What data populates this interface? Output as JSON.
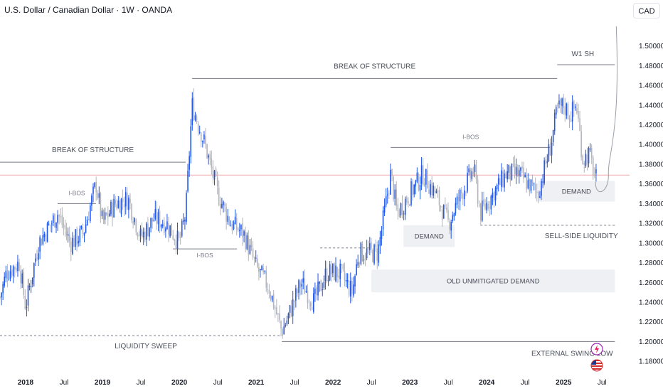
{
  "header": {
    "title": "U.S. Dollar / Canadian Dollar · 1W · OANDA",
    "currency": "CAD"
  },
  "colors": {
    "up": "#2156e6",
    "down": "#b2b5be",
    "structure_line": "#787b86",
    "zone_fill": "#eef0f4",
    "current_price_line": "#f2a6a6"
  },
  "chart_data": {
    "type": "candlestick",
    "symbol": "USDCAD",
    "interval": "1W",
    "x_range": [
      "2017-09",
      "2025-09"
    ],
    "y_range": [
      1.17,
      1.525
    ],
    "y_ticks": [
      "1.18000",
      "1.20000",
      "1.22000",
      "1.24000",
      "1.26000",
      "1.28000",
      "1.30000",
      "1.32000",
      "1.34000",
      "1.36000",
      "1.38000",
      "1.40000",
      "1.42000",
      "1.44000",
      "1.46000",
      "1.48000",
      "1.50000"
    ],
    "x_ticks": [
      {
        "date": "2018-01",
        "label": "2018",
        "year": true
      },
      {
        "date": "2018-07",
        "label": "Jul",
        "year": false
      },
      {
        "date": "2019-01",
        "label": "2019",
        "year": true
      },
      {
        "date": "2019-07",
        "label": "Jul",
        "year": false
      },
      {
        "date": "2020-01",
        "label": "2020",
        "year": true
      },
      {
        "date": "2020-07",
        "label": "Jul",
        "year": false
      },
      {
        "date": "2021-01",
        "label": "2021",
        "year": true
      },
      {
        "date": "2021-07",
        "label": "Jul",
        "year": false
      },
      {
        "date": "2022-01",
        "label": "2022",
        "year": true
      },
      {
        "date": "2022-07",
        "label": "Jul",
        "year": false
      },
      {
        "date": "2023-01",
        "label": "2023",
        "year": true
      },
      {
        "date": "2023-07",
        "label": "Jul",
        "year": false
      },
      {
        "date": "2024-01",
        "label": "2024",
        "year": true
      },
      {
        "date": "2024-07",
        "label": "Jul",
        "year": false
      },
      {
        "date": "2025-01",
        "label": "2025",
        "year": true
      },
      {
        "date": "2025-07",
        "label": "Jul",
        "year": false
      }
    ],
    "price_path": [
      [
        "2017-09",
        1.245
      ],
      [
        "2017-10",
        1.27
      ],
      [
        "2017-12",
        1.28
      ],
      [
        "2018-01",
        1.235
      ],
      [
        "2018-03",
        1.3
      ],
      [
        "2018-06",
        1.33
      ],
      [
        "2018-08",
        1.3
      ],
      [
        "2018-10",
        1.31
      ],
      [
        "2018-12",
        1.36
      ],
      [
        "2019-01",
        1.32
      ],
      [
        "2019-03",
        1.34
      ],
      [
        "2019-05",
        1.345
      ],
      [
        "2019-07",
        1.305
      ],
      [
        "2019-09",
        1.325
      ],
      [
        "2019-11",
        1.32
      ],
      [
        "2020-01",
        1.3
      ],
      [
        "2020-02",
        1.33
      ],
      [
        "2020-03",
        1.44
      ],
      [
        "2020-05",
        1.4
      ],
      [
        "2020-07",
        1.35
      ],
      [
        "2020-09",
        1.32
      ],
      [
        "2020-11",
        1.31
      ],
      [
        "2021-01",
        1.275
      ],
      [
        "2021-03",
        1.255
      ],
      [
        "2021-05",
        1.21
      ],
      [
        "2021-06",
        1.225
      ],
      [
        "2021-08",
        1.26
      ],
      [
        "2021-10",
        1.24
      ],
      [
        "2021-12",
        1.27
      ],
      [
        "2022-02",
        1.27
      ],
      [
        "2022-04",
        1.25
      ],
      [
        "2022-05",
        1.29
      ],
      [
        "2022-08",
        1.29
      ],
      [
        "2022-10",
        1.37
      ],
      [
        "2022-11",
        1.33
      ],
      [
        "2023-01",
        1.35
      ],
      [
        "2023-03",
        1.37
      ],
      [
        "2023-05",
        1.35
      ],
      [
        "2023-07",
        1.32
      ],
      [
        "2023-09",
        1.35
      ],
      [
        "2023-11",
        1.375
      ],
      [
        "2023-12",
        1.33
      ],
      [
        "2024-02",
        1.35
      ],
      [
        "2024-04",
        1.37
      ],
      [
        "2024-06",
        1.37
      ],
      [
        "2024-09",
        1.35
      ],
      [
        "2024-11",
        1.4
      ],
      [
        "2024-12",
        1.435
      ],
      [
        "2025-01",
        1.44
      ],
      [
        "2025-02",
        1.43
      ],
      [
        "2025-03",
        1.44
      ],
      [
        "2025-04",
        1.385
      ],
      [
        "2025-05",
        1.39
      ],
      [
        "2025-06",
        1.365
      ]
    ],
    "current_price": 1.369,
    "levels": [
      {
        "label": "BREAK OF STRUCTURE",
        "y": 1.382,
        "from": "2017-09",
        "to": "2020-02",
        "style": "solid"
      },
      {
        "label": "BREAK OF STRUCTURE",
        "y": 1.467,
        "from": "2020-03",
        "to": "2024-12",
        "style": "solid"
      },
      {
        "label": "I-BOS",
        "y": 1.34,
        "from": "2018-06",
        "to": "2018-12",
        "style": "solid"
      },
      {
        "label": "I-BOS",
        "y": 1.294,
        "from": "2019-12",
        "to": "2020-10",
        "style": "solid"
      },
      {
        "label": "I-BOS",
        "y": 1.397,
        "from": "2022-10",
        "to": "2024-11",
        "style": "solid"
      },
      {
        "label": "W1 SH",
        "y": 1.481,
        "from": "2024-12",
        "to": "2025-09",
        "style": "solid"
      },
      {
        "label": "",
        "y": 1.295,
        "from": "2021-11",
        "to": "2022-07",
        "style": "dashed"
      },
      {
        "label": "LIQUIDITY SWEEP",
        "y": 1.206,
        "from": "2017-09",
        "to": "2021-05",
        "style": "dashed"
      },
      {
        "label": "EXTERNAL SWING LOW",
        "y": 1.2,
        "from": "2021-05",
        "to": "2025-09",
        "style": "solid"
      },
      {
        "label": "SELL-SIDE LIQUIDITY",
        "y": 1.318,
        "from": "2023-12",
        "to": "2025-09",
        "style": "dashed"
      }
    ],
    "zones": [
      {
        "label": "DEMAND",
        "y_top": 1.363,
        "y_bottom": 1.342,
        "from": "2024-09",
        "to": "2025-09"
      },
      {
        "label": "DEMAND",
        "y_top": 1.318,
        "y_bottom": 1.296,
        "from": "2022-12",
        "to": "2023-08"
      },
      {
        "label": "OLD UNMITIGATED DEMAND",
        "y_top": 1.273,
        "y_bottom": 1.25,
        "from": "2022-07",
        "to": "2025-09"
      }
    ],
    "projection": [
      [
        "2025-06",
        1.362
      ],
      [
        "2025-07",
        1.353
      ],
      [
        "2025-08",
        1.37
      ],
      [
        "2025-09",
        1.43
      ],
      [
        "2025-09",
        1.52
      ]
    ]
  }
}
